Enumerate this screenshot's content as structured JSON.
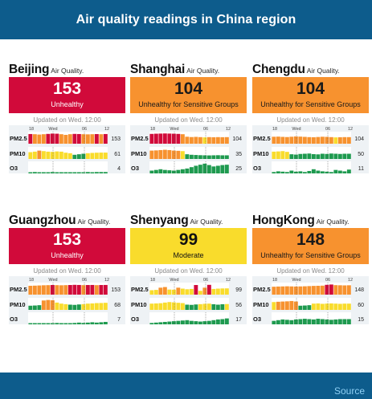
{
  "header": {
    "title": "Air quality readings in China region"
  },
  "footer": {
    "source_label": "Source"
  },
  "colors": {
    "header_bg": "#0d5c8c",
    "unhealthy": "#d10a3a",
    "sensitive": "#f7922f",
    "moderate": "#f9dc2c",
    "good": "#1e9a4f",
    "source_link": "#8fd0f5"
  },
  "cards": [
    {
      "city": "Beijing",
      "aq_label": "Air Quality.",
      "aqi": "153",
      "status": "Unhealthy",
      "level": "unhealthy",
      "updated": "Updated on Wed. 12:00",
      "times": [
        "18",
        "Wed",
        "06",
        "12"
      ],
      "pollutants": [
        {
          "label": "PM2.5",
          "value": "153",
          "bars": [
            153,
            150,
            145,
            150,
            155,
            160,
            158,
            150,
            140,
            150,
            155,
            153,
            150,
            148,
            150,
            152,
            150,
            153
          ]
        },
        {
          "label": "PM10",
          "value": "61",
          "bars": [
            65,
            70,
            80,
            75,
            70,
            68,
            72,
            70,
            60,
            55,
            40,
            45,
            50,
            55,
            58,
            60,
            61,
            61
          ]
        },
        {
          "label": "O3",
          "value": "4",
          "bars": [
            3,
            4,
            3,
            2,
            3,
            4,
            3,
            2,
            2,
            3,
            3,
            2,
            3,
            4,
            3,
            4,
            4,
            4
          ]
        }
      ]
    },
    {
      "city": "Shanghai",
      "aq_label": "Air Quality.",
      "aqi": "104",
      "status": "Unhealthy for Sensitive Groups",
      "level": "sensitive",
      "updated": "Updated on Wed. 12:00",
      "times": [
        "18",
        "Wed",
        "06",
        "12"
      ],
      "pollutants": [
        {
          "label": "PM2.5",
          "value": "104",
          "bars": [
            155,
            158,
            160,
            162,
            160,
            158,
            155,
            150,
            110,
            105,
            108,
            104,
            100,
            104,
            102,
            104,
            103,
            104
          ]
        },
        {
          "label": "PM10",
          "value": "35",
          "bars": [
            80,
            82,
            85,
            88,
            85,
            80,
            78,
            75,
            45,
            40,
            38,
            36,
            35,
            34,
            35,
            36,
            35,
            35
          ]
        },
        {
          "label": "O3",
          "value": "25",
          "bars": [
            8,
            10,
            12,
            10,
            9,
            8,
            10,
            12,
            14,
            18,
            22,
            25,
            28,
            24,
            20,
            22,
            24,
            25
          ]
        }
      ]
    },
    {
      "city": "Chengdu",
      "aq_label": "Air Quality.",
      "aqi": "104",
      "status": "Unhealthy for Sensitive Groups",
      "level": "sensitive",
      "updated": "Updated on Wed. 12:00",
      "times": [
        "18",
        "Wed",
        "06",
        "12"
      ],
      "pollutants": [
        {
          "label": "PM2.5",
          "value": "104",
          "bars": [
            110,
            112,
            108,
            105,
            110,
            115,
            112,
            108,
            104,
            102,
            106,
            110,
            108,
            104,
            100,
            102,
            104,
            104
          ]
        },
        {
          "label": "PM10",
          "value": "50",
          "bars": [
            70,
            72,
            75,
            68,
            45,
            42,
            48,
            50,
            52,
            46,
            44,
            50,
            48,
            52,
            50,
            48,
            50,
            50
          ]
        },
        {
          "label": "O3",
          "value": "11",
          "bars": [
            4,
            6,
            5,
            4,
            8,
            5,
            6,
            4,
            7,
            12,
            8,
            6,
            5,
            4,
            10,
            8,
            6,
            11
          ]
        }
      ]
    },
    {
      "city": "Guangzhou",
      "aq_label": "Air Quality.",
      "aqi": "153",
      "status": "Unhealthy",
      "level": "unhealthy",
      "updated": "Updated on Wed. 12:00",
      "times": [
        "18",
        "Wed",
        "06",
        "12"
      ],
      "pollutants": [
        {
          "label": "PM2.5",
          "value": "153",
          "bars": [
            140,
            142,
            145,
            148,
            150,
            152,
            150,
            148,
            150,
            152,
            155,
            153,
            150,
            152,
            153,
            150,
            152,
            153
          ]
        },
        {
          "label": "PM10",
          "value": "68",
          "bars": [
            40,
            42,
            45,
            90,
            95,
            92,
            70,
            60,
            55,
            50,
            48,
            52,
            55,
            60,
            62,
            65,
            66,
            68
          ]
        },
        {
          "label": "O3",
          "value": "7",
          "bars": [
            2,
            3,
            2,
            3,
            2,
            3,
            4,
            3,
            2,
            3,
            4,
            5,
            4,
            5,
            6,
            5,
            6,
            7
          ]
        }
      ]
    },
    {
      "city": "Shenyang",
      "aq_label": "Air Quality.",
      "aqi": "99",
      "status": "Moderate",
      "level": "moderate",
      "updated": "Updated on Wed. 12:00",
      "times": [
        "18",
        "Wed",
        "06",
        "12"
      ],
      "pollutants": [
        {
          "label": "PM2.5",
          "value": "99",
          "bars": [
            70,
            75,
            110,
            120,
            80,
            78,
            110,
            95,
            85,
            90,
            152,
            60,
            110,
            155,
            90,
            95,
            98,
            99
          ]
        },
        {
          "label": "PM10",
          "value": "56",
          "bars": [
            60,
            62,
            64,
            70,
            75,
            72,
            68,
            65,
            50,
            48,
            52,
            55,
            58,
            60,
            54,
            50,
            54,
            56
          ]
        },
        {
          "label": "O3",
          "value": "17",
          "bars": [
            4,
            5,
            6,
            7,
            8,
            9,
            10,
            11,
            12,
            10,
            9,
            8,
            9,
            10,
            12,
            14,
            15,
            17
          ]
        }
      ]
    },
    {
      "city": "HongKong",
      "aq_label": "Air Quality.",
      "aqi": "148",
      "status": "Unhealthy for Sensitive Groups",
      "level": "sensitive",
      "updated": "Updated on Wed. 12:00",
      "times": [
        "18",
        "Wed",
        "06",
        "12"
      ],
      "pollutants": [
        {
          "label": "PM2.5",
          "value": "148",
          "bars": [
            125,
            128,
            130,
            132,
            130,
            128,
            130,
            132,
            135,
            138,
            140,
            142,
            155,
            160,
            150,
            148,
            146,
            148
          ]
        },
        {
          "label": "PM10",
          "value": "60",
          "bars": [
            75,
            78,
            80,
            82,
            85,
            80,
            40,
            42,
            45,
            60,
            62,
            58,
            60,
            62,
            60,
            58,
            60,
            60
          ]
        },
        {
          "label": "O3",
          "value": "15",
          "bars": [
            10,
            12,
            14,
            13,
            12,
            14,
            15,
            16,
            15,
            14,
            16,
            15,
            14,
            13,
            14,
            15,
            15,
            15
          ]
        }
      ]
    }
  ]
}
